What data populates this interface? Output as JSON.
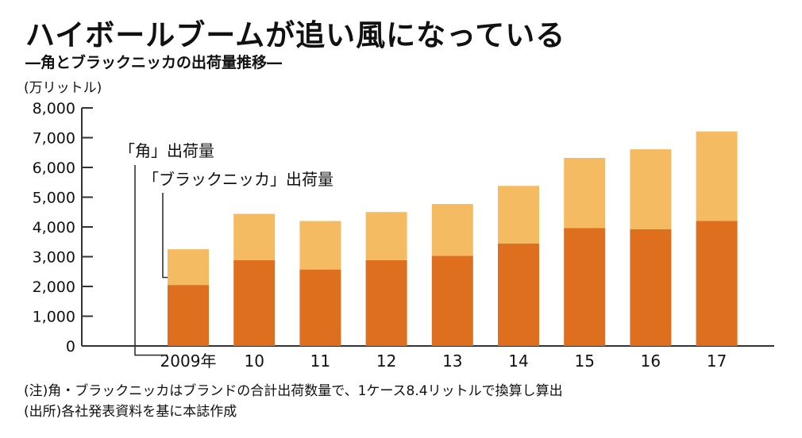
{
  "title": "ハイボールブームが追い風になっている",
  "subtitle": "―角とブラックニッカの出荷量推移―",
  "unit": "(万リットル)",
  "notes": [
    "(注)角・ブラックニッカはブランドの合計出荷数量で、1ケース8.4リットルで換算し算出",
    "(出所)各社発表資料を基に本誌作成"
  ],
  "colors": {
    "kaku": "#dd6f1f",
    "black_nikka": "#f5bb62",
    "axis": "#333333"
  },
  "chart_data": {
    "type": "bar",
    "stacked": true,
    "categories": [
      "2009年",
      "10",
      "11",
      "12",
      "13",
      "14",
      "15",
      "16",
      "17"
    ],
    "series": [
      {
        "name": "「角」出荷量",
        "values": [
          2050,
          2880,
          2570,
          2880,
          3030,
          3440,
          3960,
          3920,
          4200
        ]
      },
      {
        "name": "「ブラックニッカ」出荷量",
        "values": [
          1200,
          1560,
          1630,
          1620,
          1740,
          1940,
          2360,
          2690,
          3010
        ]
      }
    ],
    "ylim": [
      0,
      8000
    ],
    "yticks": [
      "0",
      "1,000",
      "2,000",
      "3,000",
      "4,000",
      "5,000",
      "6,000",
      "7,000",
      "8,000"
    ],
    "ylabel": "(万リットル)",
    "grid": false,
    "legend": "left, with leader lines to the 2009 bar"
  }
}
